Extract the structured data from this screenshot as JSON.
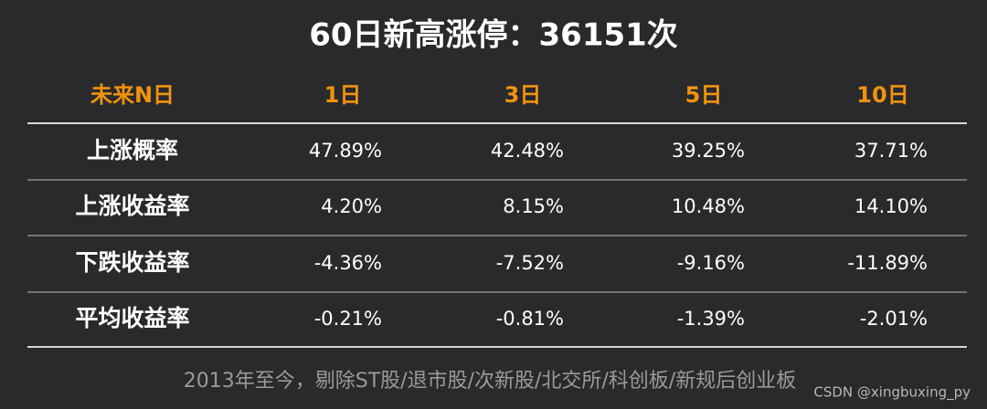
{
  "header": {
    "title": "60日新高涨停：36151次"
  },
  "table": {
    "columns": [
      "未来N日",
      "1日",
      "3日",
      "5日",
      "10日"
    ],
    "rows": [
      [
        "上涨概率",
        "47.89%",
        "42.48%",
        "39.25%",
        "37.71%"
      ],
      [
        "上涨收益率",
        "4.20%",
        "8.15%",
        "10.48%",
        "14.10%"
      ],
      [
        "下跌收益率",
        "-4.36%",
        "-7.52%",
        "-9.16%",
        "-11.89%"
      ],
      [
        "平均收益率",
        "-0.21%",
        "-0.81%",
        "-1.39%",
        "-2.01%"
      ]
    ]
  },
  "footnote": "2013年至今，剔除ST股/退市股/次新股/北交所/科创板/新规后创业板",
  "watermark": "CSDN @xingbuxing_py"
}
